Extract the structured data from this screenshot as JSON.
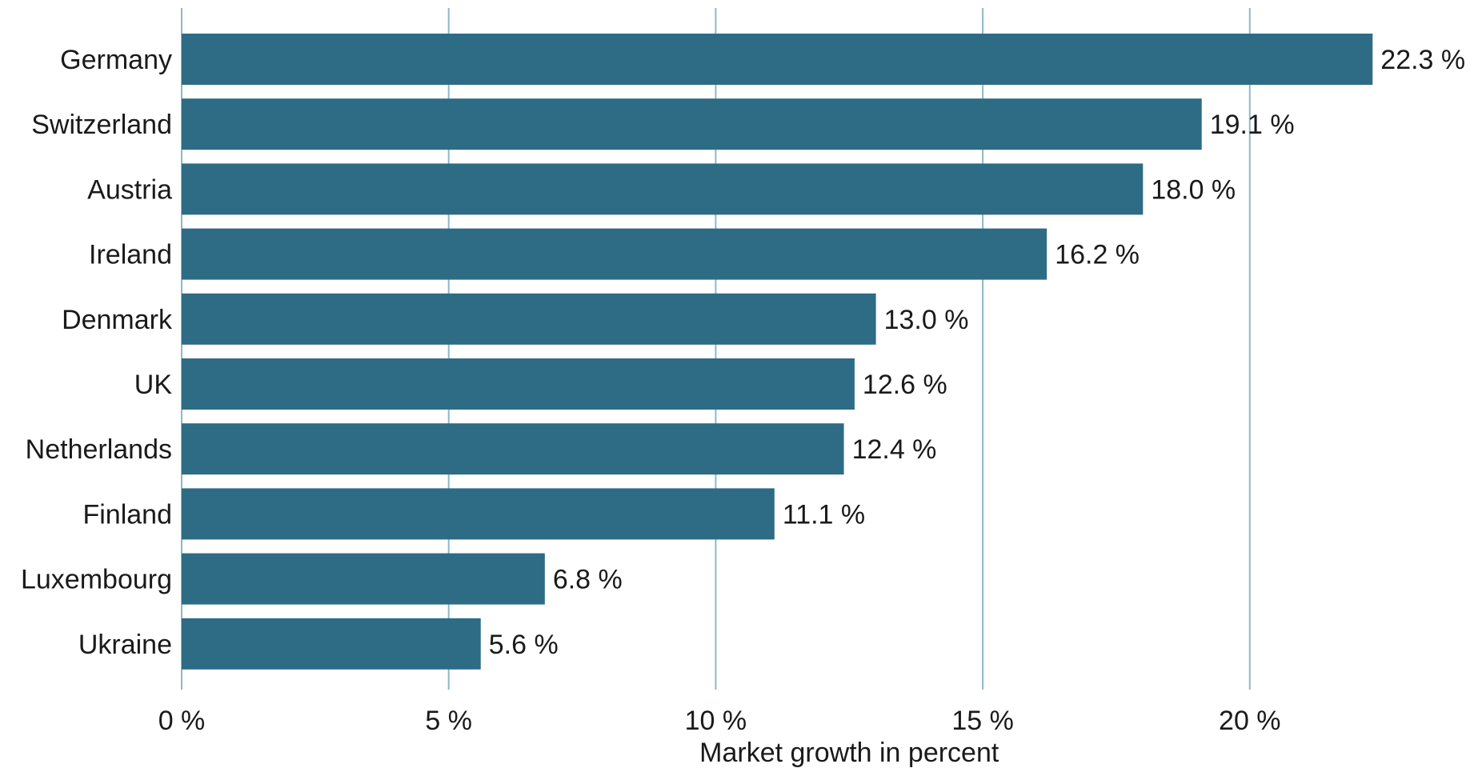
{
  "chart_data": {
    "type": "bar",
    "orientation": "horizontal",
    "categories": [
      "Germany",
      "Switzerland",
      "Austria",
      "Ireland",
      "Denmark",
      "UK",
      "Netherlands",
      "Finland",
      "Luxembourg",
      "Ukraine"
    ],
    "values": [
      22.3,
      19.1,
      18.0,
      16.2,
      13.0,
      12.6,
      12.4,
      11.1,
      6.8,
      5.6
    ],
    "value_labels": [
      "22.3 %",
      "19.1 %",
      "18.0 %",
      "16.2 %",
      "13.0 %",
      "12.6 %",
      "12.4 %",
      "11.1 %",
      "6.8 %",
      "5.6 %"
    ],
    "title": "",
    "xlabel": "Market growth in percent",
    "ylabel": "",
    "xlim": [
      0,
      22.3
    ],
    "xticks": [
      0,
      5,
      10,
      15,
      20
    ],
    "xtick_labels": [
      "0 %",
      "5 %",
      "10 %",
      "15 %",
      "20 %"
    ],
    "grid": "vertical",
    "legend": "none",
    "colors": {
      "bar": "#2e6b85",
      "grid": "#8fb8c8",
      "text": "#1a1a1a"
    }
  }
}
